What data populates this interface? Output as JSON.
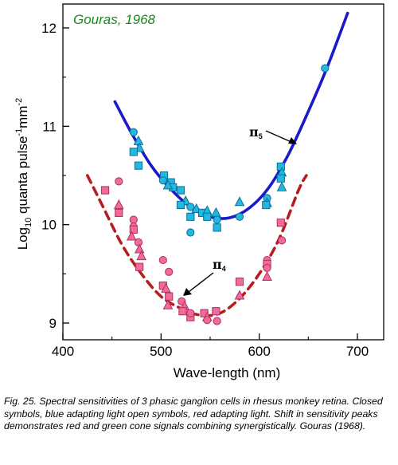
{
  "chart_data": {
    "type": "scatter",
    "title": "Gouras, 1968",
    "xlabel": "Wave-length (nm)",
    "ylabel_parts": {
      "pre": "Log",
      "sub": "10",
      "mid": " quanta pulse",
      "sup1": "-1",
      "mid2": "mm",
      "sup2": "-2"
    },
    "xlim": [
      400,
      700
    ],
    "ylim": [
      8.9,
      12.3
    ],
    "x_ticks": [
      400,
      500,
      600,
      700
    ],
    "y_ticks": [
      9,
      10,
      11,
      12
    ],
    "grid": false,
    "colors": {
      "blue_marker": "#22b8e0",
      "blue_curve": "#1a1ac8",
      "red_marker": "#f06a9a",
      "red_curve": "#b41e1e",
      "title": "#1a8a1a"
    },
    "curve_labels": [
      {
        "symbol": "π",
        "sub": "5",
        "series": "blue"
      },
      {
        "symbol": "π",
        "sub": "4",
        "series": "red"
      }
    ],
    "series": [
      {
        "curve": {
          "color": "#1a1ac8",
          "style": "solid",
          "points": [
            [
              453,
              11.25
            ],
            [
              470,
              10.93
            ],
            [
              490,
              10.6
            ],
            [
              510,
              10.36
            ],
            [
              530,
              10.18
            ],
            [
              550,
              10.08
            ],
            [
              570,
              10.07
            ],
            [
              590,
              10.17
            ],
            [
              610,
              10.38
            ],
            [
              630,
              10.72
            ],
            [
              650,
              11.15
            ],
            [
              670,
              11.62
            ],
            [
              690,
              12.15
            ]
          ]
        },
        "marker_color": "#22b8e0",
        "markers": [
          {
            "shape": "circle",
            "x": 472,
            "y": 10.94
          },
          {
            "shape": "triangle",
            "x": 477,
            "y": 10.85
          },
          {
            "shape": "triangle",
            "x": 478,
            "y": 10.78
          },
          {
            "shape": "square",
            "x": 472,
            "y": 10.74
          },
          {
            "shape": "square",
            "x": 477,
            "y": 10.6
          },
          {
            "shape": "square",
            "x": 503,
            "y": 10.5
          },
          {
            "shape": "circle",
            "x": 502,
            "y": 10.45
          },
          {
            "shape": "square",
            "x": 510,
            "y": 10.43
          },
          {
            "shape": "square",
            "x": 512,
            "y": 10.38
          },
          {
            "shape": "triangle",
            "x": 507,
            "y": 10.4
          },
          {
            "shape": "square",
            "x": 520,
            "y": 10.35
          },
          {
            "shape": "triangle",
            "x": 525,
            "y": 10.24
          },
          {
            "shape": "square",
            "x": 520,
            "y": 10.2
          },
          {
            "shape": "circle",
            "x": 530,
            "y": 10.18
          },
          {
            "shape": "square",
            "x": 530,
            "y": 10.08
          },
          {
            "shape": "triangle",
            "x": 536,
            "y": 10.16
          },
          {
            "shape": "square",
            "x": 542,
            "y": 10.12
          },
          {
            "shape": "triangle",
            "x": 547,
            "y": 10.14
          },
          {
            "shape": "square",
            "x": 547,
            "y": 10.08
          },
          {
            "shape": "triangle",
            "x": 556,
            "y": 10.12
          },
          {
            "shape": "circle",
            "x": 557,
            "y": 10.05
          },
          {
            "shape": "square",
            "x": 557,
            "y": 9.97
          },
          {
            "shape": "circle",
            "x": 530,
            "y": 9.92
          },
          {
            "shape": "circle",
            "x": 580,
            "y": 10.08
          },
          {
            "shape": "triangle",
            "x": 580,
            "y": 10.23
          },
          {
            "shape": "circle",
            "x": 608,
            "y": 10.27
          },
          {
            "shape": "triangle",
            "x": 608,
            "y": 10.22
          },
          {
            "shape": "square",
            "x": 607,
            "y": 10.2
          },
          {
            "shape": "square",
            "x": 622,
            "y": 10.59
          },
          {
            "shape": "triangle",
            "x": 623,
            "y": 10.53
          },
          {
            "shape": "square",
            "x": 622,
            "y": 10.47
          },
          {
            "shape": "triangle",
            "x": 623,
            "y": 10.38
          },
          {
            "shape": "circle",
            "x": 667,
            "y": 11.59
          }
        ]
      },
      {
        "curve": {
          "color": "#b41e1e",
          "style": "dashed",
          "points": [
            [
              425,
              10.5
            ],
            [
              440,
              10.2
            ],
            [
              460,
              9.8
            ],
            [
              480,
              9.5
            ],
            [
              500,
              9.27
            ],
            [
              520,
              9.15
            ],
            [
              540,
              9.08
            ],
            [
              560,
              9.1
            ],
            [
              580,
              9.25
            ],
            [
              600,
              9.5
            ],
            [
              620,
              9.85
            ],
            [
              640,
              10.35
            ],
            [
              648,
              10.5
            ]
          ]
        },
        "marker_color": "#f06a9a",
        "markers": [
          {
            "shape": "circle",
            "x": 457,
            "y": 10.44
          },
          {
            "shape": "square",
            "x": 443,
            "y": 10.35
          },
          {
            "shape": "triangle",
            "x": 457,
            "y": 10.2
          },
          {
            "shape": "square",
            "x": 457,
            "y": 10.12
          },
          {
            "shape": "circle",
            "x": 472,
            "y": 10.05
          },
          {
            "shape": "circle",
            "x": 472,
            "y": 9.98
          },
          {
            "shape": "square",
            "x": 472,
            "y": 9.95
          },
          {
            "shape": "triangle",
            "x": 470,
            "y": 9.88
          },
          {
            "shape": "circle",
            "x": 477,
            "y": 9.82
          },
          {
            "shape": "triangle",
            "x": 478,
            "y": 9.75
          },
          {
            "shape": "triangle",
            "x": 480,
            "y": 9.68
          },
          {
            "shape": "square",
            "x": 478,
            "y": 9.57
          },
          {
            "shape": "circle",
            "x": 502,
            "y": 9.64
          },
          {
            "shape": "circle",
            "x": 508,
            "y": 9.52
          },
          {
            "shape": "square",
            "x": 502,
            "y": 9.38
          },
          {
            "shape": "triangle",
            "x": 505,
            "y": 9.35
          },
          {
            "shape": "square",
            "x": 508,
            "y": 9.27
          },
          {
            "shape": "triangle",
            "x": 507,
            "y": 9.18
          },
          {
            "shape": "circle",
            "x": 521,
            "y": 9.22
          },
          {
            "shape": "triangle",
            "x": 524,
            "y": 9.17
          },
          {
            "shape": "square",
            "x": 522,
            "y": 9.12
          },
          {
            "shape": "square",
            "x": 530,
            "y": 9.06
          },
          {
            "shape": "circle",
            "x": 530,
            "y": 9.1
          },
          {
            "shape": "square",
            "x": 544,
            "y": 9.1
          },
          {
            "shape": "triangle",
            "x": 547,
            "y": 9.06
          },
          {
            "shape": "circle",
            "x": 547,
            "y": 9.03
          },
          {
            "shape": "square",
            "x": 556,
            "y": 9.12
          },
          {
            "shape": "circle",
            "x": 557,
            "y": 9.02
          },
          {
            "shape": "square",
            "x": 580,
            "y": 9.42
          },
          {
            "shape": "triangle",
            "x": 580,
            "y": 9.28
          },
          {
            "shape": "circle",
            "x": 608,
            "y": 9.64
          },
          {
            "shape": "square",
            "x": 608,
            "y": 9.6
          },
          {
            "shape": "circle",
            "x": 608,
            "y": 9.56
          },
          {
            "shape": "triangle",
            "x": 608,
            "y": 9.47
          },
          {
            "shape": "square",
            "x": 622,
            "y": 10.02
          },
          {
            "shape": "circle",
            "x": 623,
            "y": 9.84
          }
        ]
      }
    ]
  },
  "caption": {
    "text": "Fig. 25. Spectral sensitivities of 3 phasic ganglion cells in rhesus monkey retina. Closed symbols, blue adapting light open symbols, red adapting light. Shift in sensitivity peaks demonstrates red and green cone signals combining synergistically. Gouras (1968)."
  }
}
